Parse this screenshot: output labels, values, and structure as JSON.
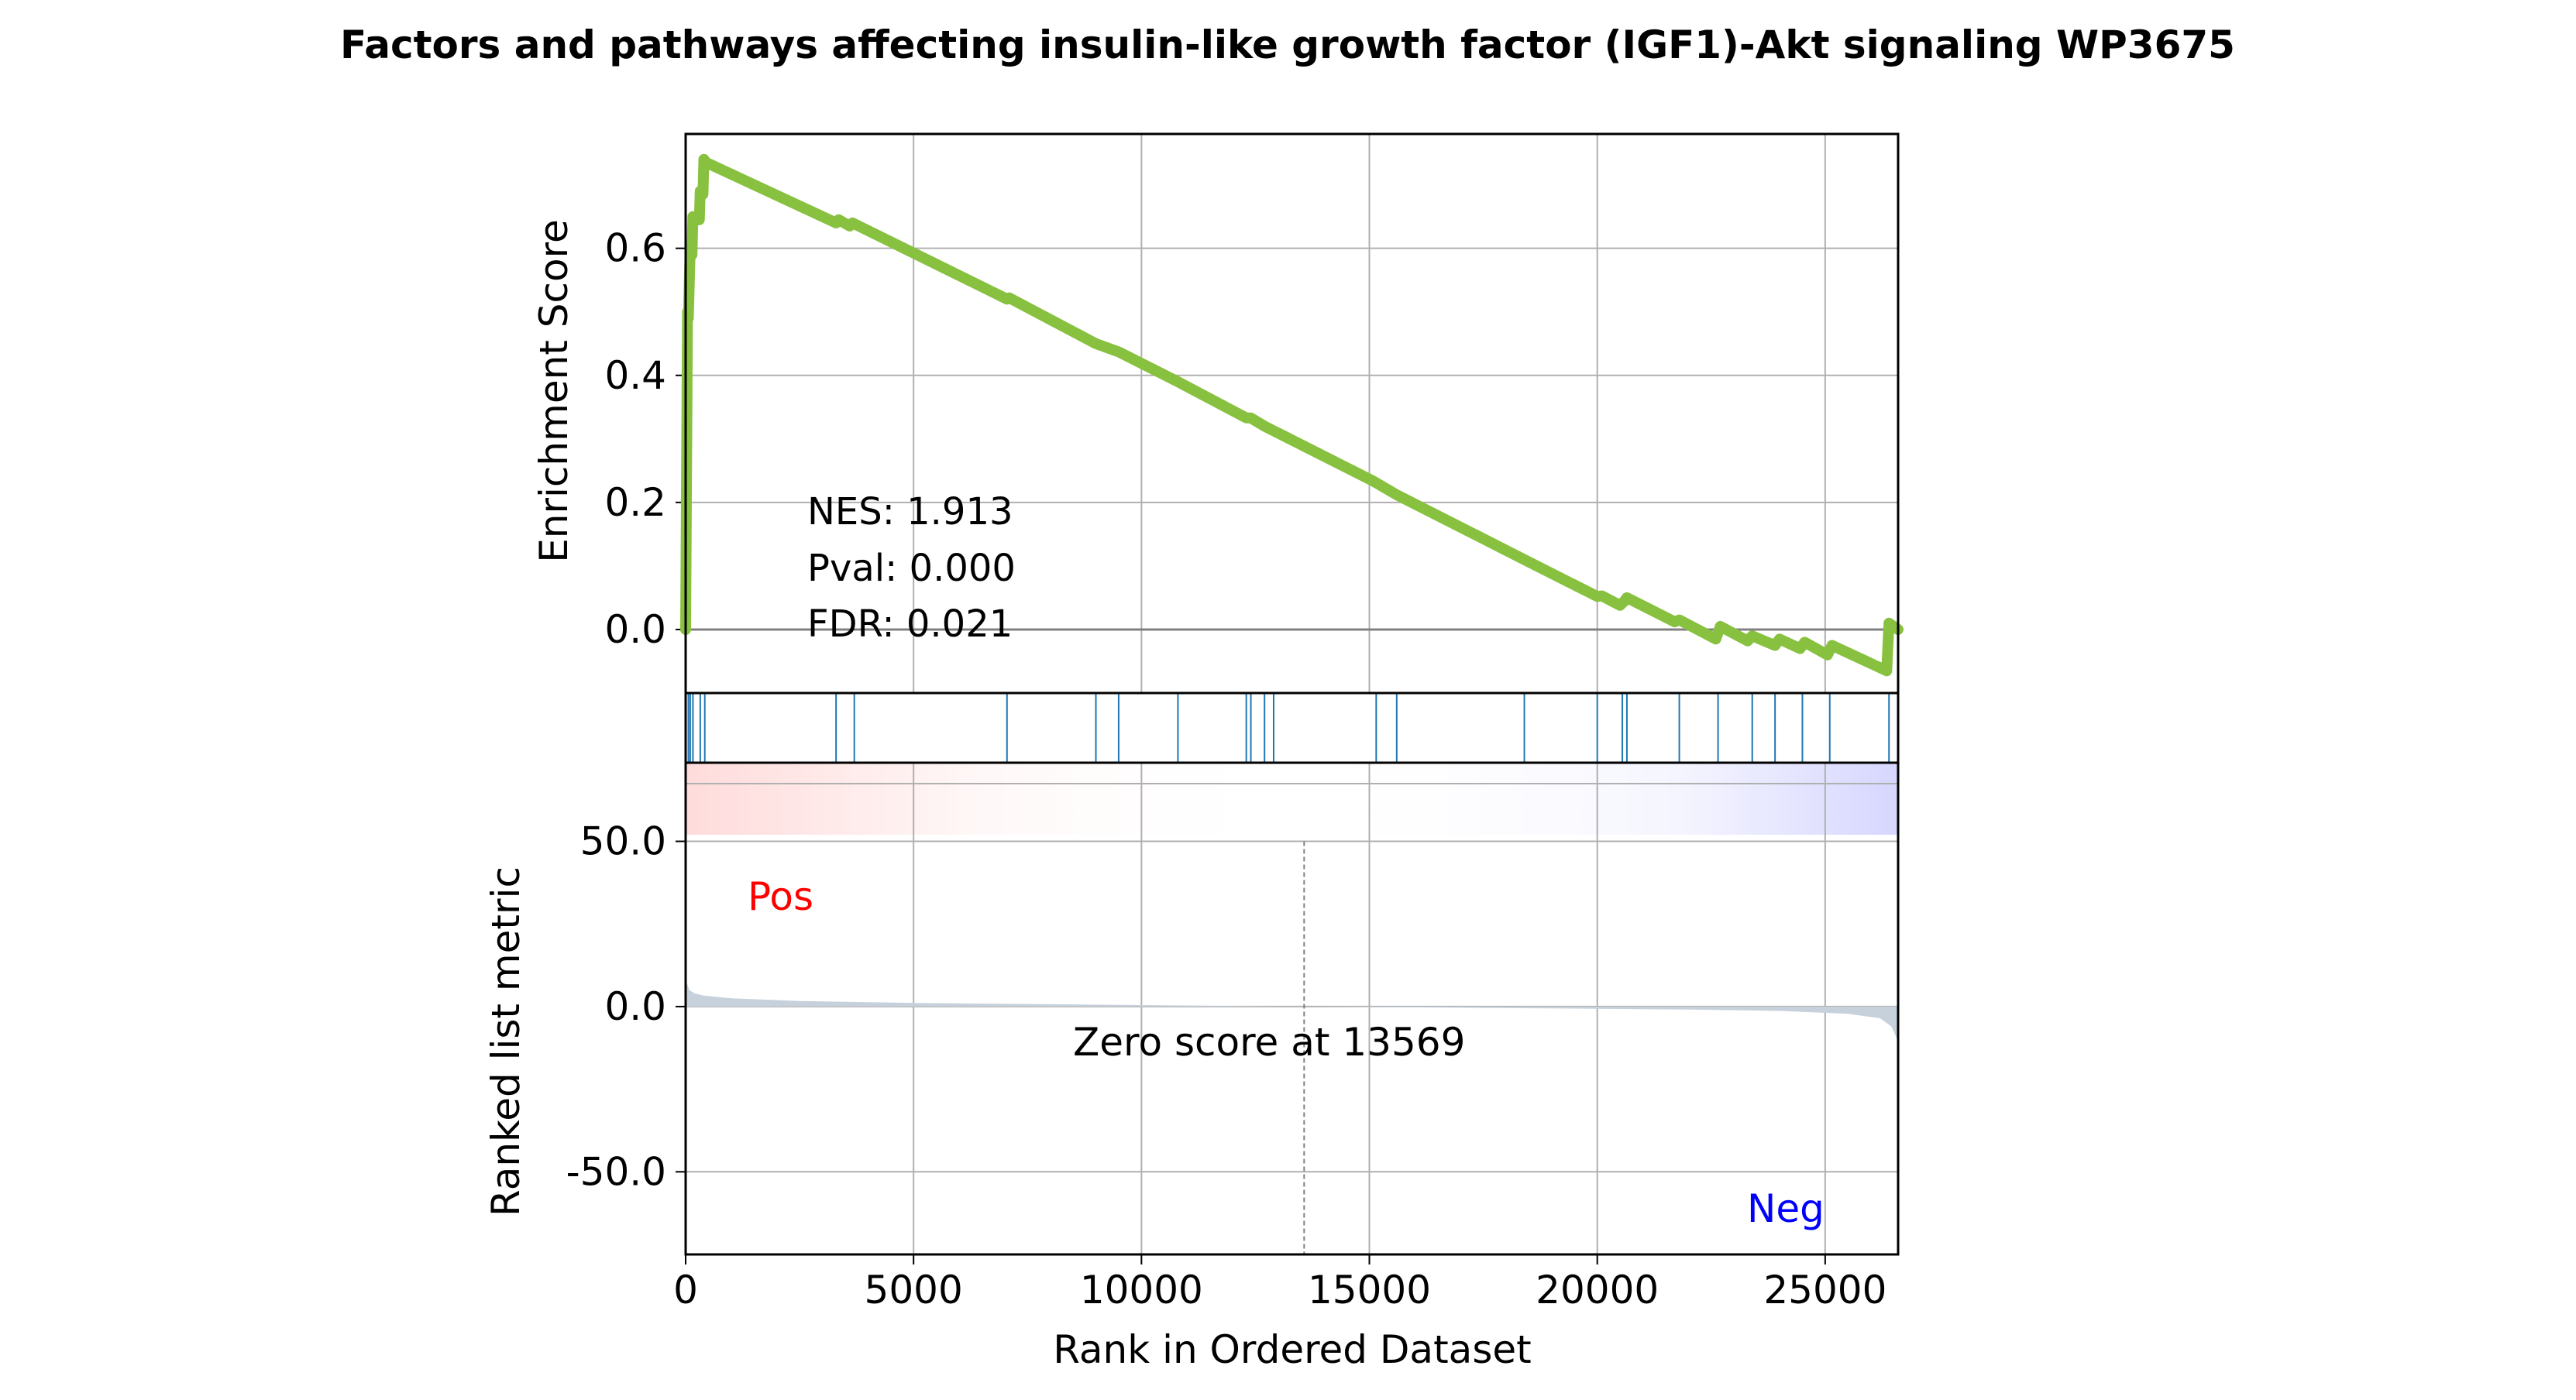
{
  "chart_data": {
    "type": "line",
    "title": "Factors and pathways affecting insulin-like growth factor (IGF1)-Akt signaling WP3675",
    "xlabel": "Rank in Ordered Dataset",
    "xlim": [
      0,
      26600
    ],
    "x_ticks": [
      {
        "value": 0,
        "label": "0"
      },
      {
        "value": 5000,
        "label": "5000"
      },
      {
        "value": 10000,
        "label": "10000"
      },
      {
        "value": 15000,
        "label": "15000"
      },
      {
        "value": 20000,
        "label": "20000"
      },
      {
        "value": 25000,
        "label": "25000"
      }
    ],
    "grid": true,
    "colors": {
      "es_line": "#88c140",
      "hit_line": "#1f77b4",
      "metric_fill": "#c6d1db",
      "pos_text": "#ff0000",
      "neg_text": "#0000ff",
      "zero_line": "#808080"
    },
    "enrichment_panel": {
      "ylabel": "Enrichment Score",
      "ylim": [
        -0.1,
        0.78
      ],
      "y_ticks": [
        {
          "value": 0.0,
          "label": "0.0"
        },
        {
          "value": 0.2,
          "label": "0.2"
        },
        {
          "value": 0.4,
          "label": "0.4"
        },
        {
          "value": 0.6,
          "label": "0.6"
        }
      ],
      "stats": [
        "NES: 1.913",
        "Pval: 0.000",
        "FDR: 0.021"
      ],
      "running_es": [
        [
          0,
          0.0
        ],
        [
          40,
          0.5
        ],
        [
          60,
          0.49
        ],
        [
          100,
          0.6
        ],
        [
          140,
          0.59
        ],
        [
          160,
          0.65
        ],
        [
          300,
          0.645
        ],
        [
          320,
          0.69
        ],
        [
          380,
          0.685
        ],
        [
          400,
          0.74
        ],
        [
          450,
          0.735
        ],
        [
          3300,
          0.64
        ],
        [
          3360,
          0.645
        ],
        [
          3600,
          0.635
        ],
        [
          3660,
          0.64
        ],
        [
          7050,
          0.52
        ],
        [
          7100,
          0.522
        ],
        [
          9000,
          0.45
        ],
        [
          9500,
          0.437
        ],
        [
          10800,
          0.39
        ],
        [
          12300,
          0.333
        ],
        [
          12400,
          0.333
        ],
        [
          12700,
          0.32
        ],
        [
          15100,
          0.233
        ],
        [
          15600,
          0.212
        ],
        [
          18400,
          0.11
        ],
        [
          20000,
          0.052
        ],
        [
          20100,
          0.053
        ],
        [
          20500,
          0.038
        ],
        [
          20600,
          0.045
        ],
        [
          20650,
          0.05
        ],
        [
          21700,
          0.012
        ],
        [
          21800,
          0.015
        ],
        [
          22600,
          -0.015
        ],
        [
          22700,
          0.005
        ],
        [
          23300,
          -0.018
        ],
        [
          23400,
          -0.01
        ],
        [
          23900,
          -0.025
        ],
        [
          24000,
          -0.015
        ],
        [
          24450,
          -0.03
        ],
        [
          24550,
          -0.02
        ],
        [
          25050,
          -0.04
        ],
        [
          25150,
          -0.025
        ],
        [
          26350,
          -0.065
        ],
        [
          26400,
          0.01
        ],
        [
          26600,
          0.0
        ]
      ]
    },
    "hits": [
      60,
      100,
      160,
      320,
      420,
      3300,
      3700,
      7050,
      9000,
      9500,
      10800,
      12300,
      12400,
      12700,
      12900,
      15150,
      15600,
      18400,
      20000,
      20550,
      20650,
      21800,
      22650,
      23400,
      23900,
      24500,
      25100,
      26400
    ],
    "metric_panel": {
      "ylabel": "Ranked list metric",
      "ylim": [
        -75,
        52
      ],
      "y_ticks": [
        {
          "value": 50,
          "label": "50.0"
        },
        {
          "value": 0,
          "label": "0.0"
        },
        {
          "value": -50,
          "label": "-50.0"
        }
      ],
      "pos_label": "Pos",
      "neg_label": "Neg",
      "zero_score_rank": 13569,
      "zero_label": "Zero score at 13569",
      "curve": [
        [
          0,
          9
        ],
        [
          30,
          7
        ],
        [
          80,
          5
        ],
        [
          200,
          4
        ],
        [
          400,
          3.3
        ],
        [
          1000,
          2.5
        ],
        [
          2500,
          1.7
        ],
        [
          5000,
          1.1
        ],
        [
          8000,
          0.7
        ],
        [
          11000,
          0.3
        ],
        [
          13569,
          0
        ],
        [
          16000,
          -0.25
        ],
        [
          19000,
          -0.55
        ],
        [
          22000,
          -0.9
        ],
        [
          24000,
          -1.3
        ],
        [
          25500,
          -2.2
        ],
        [
          26200,
          -3.5
        ],
        [
          26450,
          -6
        ],
        [
          26550,
          -9
        ],
        [
          26600,
          -11
        ]
      ]
    }
  }
}
